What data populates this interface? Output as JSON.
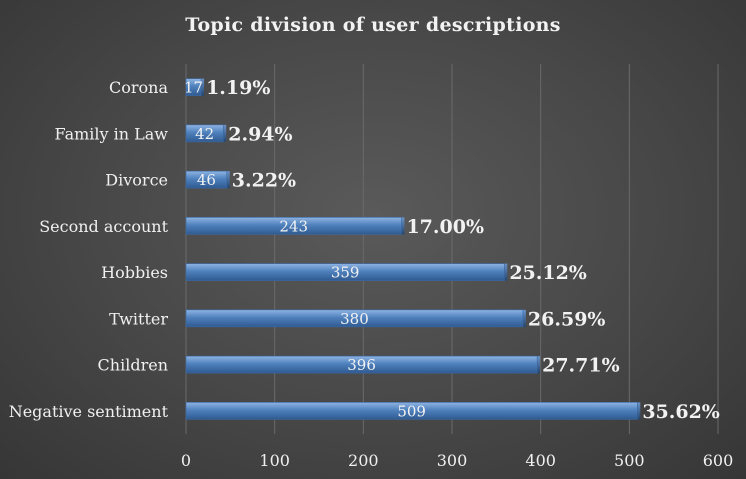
{
  "chart_data": {
    "type": "bar",
    "orientation": "horizontal",
    "title": "Topic division of user descriptions",
    "categories": [
      "Corona",
      "Family in Law",
      "Divorce",
      "Second account",
      "Hobbies",
      "Twitter",
      "Children",
      "Negative sentiment"
    ],
    "values": [
      17,
      42,
      46,
      243,
      359,
      380,
      396,
      509
    ],
    "percent_labels": [
      "1.19%",
      "2.94%",
      "3.22%",
      "17.00%",
      "25.12%",
      "26.59%",
      "27.71%",
      "35.62%"
    ],
    "xlim": [
      0,
      600
    ],
    "xticks": [
      "0",
      "100",
      "200",
      "300",
      "400",
      "500",
      "600"
    ],
    "grid": true,
    "legend": "none",
    "bar_color": "#4f81bd",
    "background_color": "#474747"
  }
}
